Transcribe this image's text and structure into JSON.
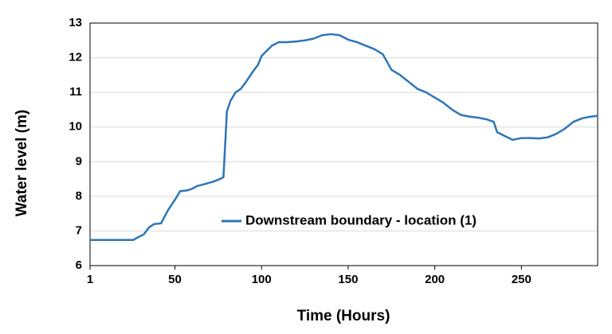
{
  "chart_data": {
    "type": "line",
    "x_label": "Time (Hours)",
    "y_label": "Water level (m)",
    "xlim": [
      1,
      294
    ],
    "ylim": [
      6,
      13
    ],
    "xticks": [
      1,
      50,
      100,
      150,
      200,
      250
    ],
    "yticks": [
      6,
      7,
      8,
      9,
      10,
      11,
      12,
      13
    ],
    "grid": true,
    "legend": "center",
    "x": [
      1,
      26,
      28,
      32,
      35,
      38,
      42,
      46,
      50,
      53,
      57,
      60,
      63,
      67,
      72,
      76,
      78,
      80,
      82,
      85,
      88,
      91,
      95,
      98,
      100,
      103,
      106,
      110,
      115,
      120,
      125,
      130,
      135,
      140,
      145,
      150,
      155,
      160,
      165,
      170,
      175,
      180,
      185,
      190,
      195,
      200,
      205,
      210,
      215,
      220,
      225,
      230,
      234,
      236,
      240,
      245,
      250,
      255,
      260,
      265,
      270,
      275,
      280,
      285,
      290,
      294
    ],
    "series": [
      {
        "name": "Downstream boundary - location (1)",
        "color": "#2e75b6",
        "values": [
          6.74,
          6.74,
          6.8,
          6.9,
          7.1,
          7.2,
          7.22,
          7.6,
          7.9,
          8.15,
          8.17,
          8.22,
          8.3,
          8.35,
          8.42,
          8.5,
          8.55,
          10.45,
          10.75,
          11.0,
          11.1,
          11.3,
          11.6,
          11.8,
          12.05,
          12.2,
          12.35,
          12.45,
          12.45,
          12.47,
          12.5,
          12.55,
          12.65,
          12.68,
          12.65,
          12.52,
          12.45,
          12.35,
          12.25,
          12.1,
          11.65,
          11.5,
          11.3,
          11.1,
          11.0,
          10.85,
          10.7,
          10.5,
          10.35,
          10.3,
          10.27,
          10.22,
          10.15,
          9.85,
          9.75,
          9.63,
          9.68,
          9.68,
          9.67,
          9.7,
          9.8,
          9.95,
          10.15,
          10.25,
          10.3,
          10.32
        ]
      }
    ]
  }
}
